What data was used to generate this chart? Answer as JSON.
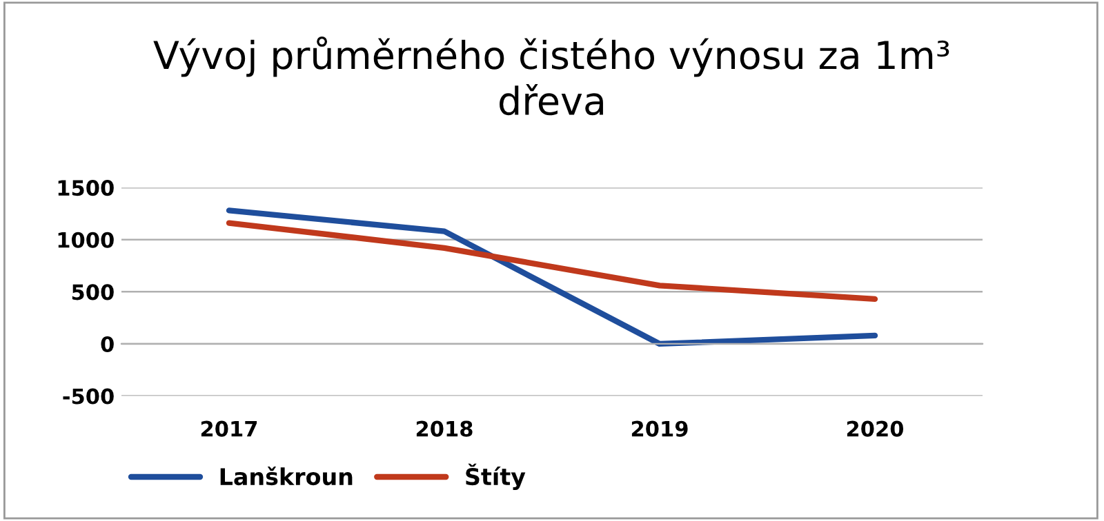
{
  "chart_data": {
    "type": "line",
    "title": "Vývoj průměrného čistého výnosu za 1m³\ndřeva",
    "categories": [
      "2017",
      "2018",
      "2019",
      "2020"
    ],
    "series": [
      {
        "name": "Lanškroun",
        "color": "#1f4e9c",
        "values": [
          1280,
          1080,
          0,
          80
        ]
      },
      {
        "name": "Štíty",
        "color": "#c0391c",
        "values": [
          1160,
          920,
          560,
          430
        ]
      }
    ],
    "ylim": [
      -500,
      1500
    ],
    "yticks": [
      -500,
      0,
      500,
      1000,
      1500
    ],
    "grid": "y",
    "legend": "bottom left",
    "marker": "none",
    "line_style": "solid"
  }
}
